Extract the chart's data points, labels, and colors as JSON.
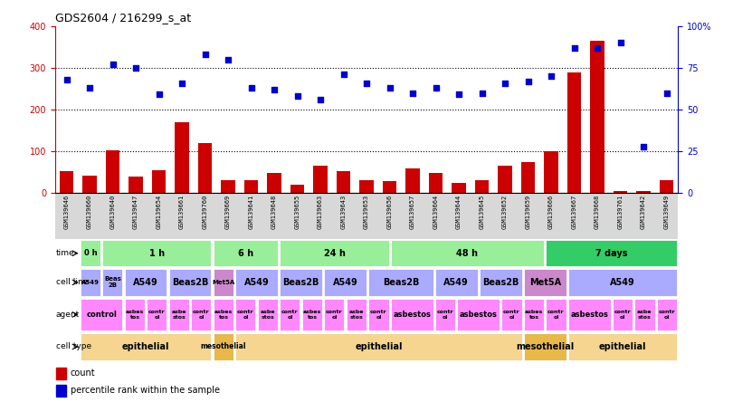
{
  "title": "GDS2604 / 216299_s_at",
  "samples": [
    "GSM139646",
    "GSM139660",
    "GSM139640",
    "GSM139647",
    "GSM139654",
    "GSM139661",
    "GSM139760",
    "GSM139669",
    "GSM139641",
    "GSM139648",
    "GSM139655",
    "GSM139663",
    "GSM139643",
    "GSM139653",
    "GSM139656",
    "GSM139657",
    "GSM139664",
    "GSM139644",
    "GSM139645",
    "GSM139652",
    "GSM139659",
    "GSM139666",
    "GSM139667",
    "GSM139668",
    "GSM139761",
    "GSM139642",
    "GSM139649"
  ],
  "counts": [
    52,
    42,
    102,
    40,
    55,
    170,
    120,
    30,
    30,
    48,
    20,
    65,
    52,
    30,
    28,
    58,
    48,
    25,
    30,
    65,
    75,
    100,
    290,
    365,
    5,
    5,
    30
  ],
  "percentile": [
    68,
    63,
    77,
    75,
    59,
    66,
    83,
    80,
    63,
    62,
    58,
    56,
    71,
    66,
    63,
    60,
    63,
    59,
    60,
    66,
    67,
    70,
    87,
    87,
    90,
    28,
    60
  ],
  "bar_color": "#cc0000",
  "dot_color": "#0000cc"
}
